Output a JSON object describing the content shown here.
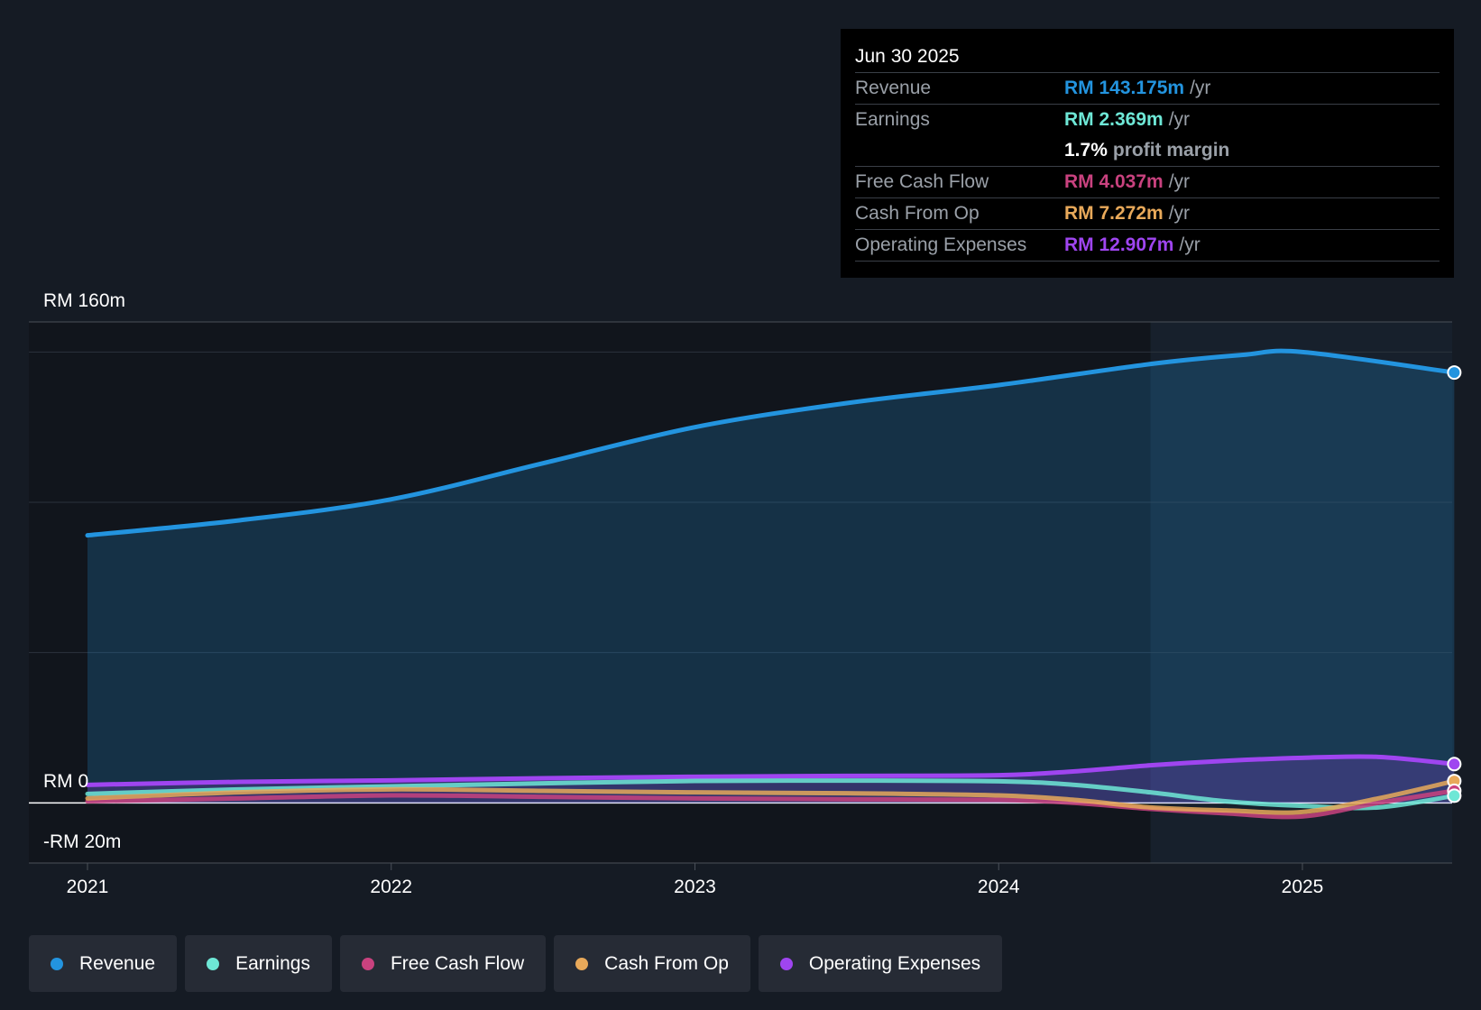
{
  "chart_data": {
    "type": "area",
    "x_unit": "year",
    "x_ticks": [
      "2021",
      "2022",
      "2023",
      "2024",
      "2025"
    ],
    "y_labels": {
      "top": "RM 160m",
      "zero": "RM 0",
      "bottom": "-RM 20m"
    },
    "ylim": [
      -20,
      160
    ],
    "unit": "RM m",
    "series": [
      {
        "name": "Revenue",
        "color": "#2394df",
        "fill": true,
        "points": [
          [
            2021.0,
            89
          ],
          [
            2021.5,
            94
          ],
          [
            2022.0,
            101
          ],
          [
            2022.5,
            113
          ],
          [
            2023.0,
            125
          ],
          [
            2023.5,
            133
          ],
          [
            2024.0,
            139
          ],
          [
            2024.5,
            146
          ],
          [
            2024.8,
            149
          ],
          [
            2025.0,
            150
          ],
          [
            2025.5,
            143.175
          ]
        ]
      },
      {
        "name": "Earnings",
        "color": "#6ee7d6",
        "fill": false,
        "points": [
          [
            2021.0,
            3
          ],
          [
            2021.5,
            4.5
          ],
          [
            2022.0,
            5.5
          ],
          [
            2022.5,
            6.5
          ],
          [
            2023.0,
            7.3
          ],
          [
            2023.5,
            7.4
          ],
          [
            2024.0,
            7.2
          ],
          [
            2024.25,
            6
          ],
          [
            2024.5,
            3.5
          ],
          [
            2024.75,
            0.5
          ],
          [
            2025.0,
            -1
          ],
          [
            2025.25,
            -1.5
          ],
          [
            2025.5,
            2.369
          ]
        ]
      },
      {
        "name": "Free Cash Flow",
        "color": "#c9427f",
        "fill": false,
        "points": [
          [
            2021.0,
            0.5
          ],
          [
            2021.5,
            1.5
          ],
          [
            2022.0,
            2.5
          ],
          [
            2022.5,
            2
          ],
          [
            2023.0,
            1.5
          ],
          [
            2023.5,
            1.2
          ],
          [
            2024.0,
            1
          ],
          [
            2024.25,
            0
          ],
          [
            2024.5,
            -2
          ],
          [
            2024.75,
            -3.5
          ],
          [
            2025.0,
            -4.5
          ],
          [
            2025.25,
            0
          ],
          [
            2025.5,
            4.037
          ]
        ]
      },
      {
        "name": "Cash From Op",
        "color": "#e8a95a",
        "fill": false,
        "points": [
          [
            2021.0,
            1.5
          ],
          [
            2021.5,
            3.5
          ],
          [
            2022.0,
            4.5
          ],
          [
            2022.5,
            4
          ],
          [
            2023.0,
            3.5
          ],
          [
            2023.5,
            3.2
          ],
          [
            2024.0,
            2.5
          ],
          [
            2024.25,
            1
          ],
          [
            2024.5,
            -1.5
          ],
          [
            2024.75,
            -2.5
          ],
          [
            2025.0,
            -3
          ],
          [
            2025.25,
            1.5
          ],
          [
            2025.5,
            7.272
          ]
        ]
      },
      {
        "name": "Operating Expenses",
        "color": "#9f45f0",
        "fill": true,
        "points": [
          [
            2021.0,
            6
          ],
          [
            2021.5,
            7
          ],
          [
            2022.0,
            7.5
          ],
          [
            2022.5,
            8.2
          ],
          [
            2023.0,
            8.7
          ],
          [
            2023.5,
            9
          ],
          [
            2024.0,
            9.2
          ],
          [
            2024.25,
            10.5
          ],
          [
            2024.5,
            12.5
          ],
          [
            2024.75,
            14
          ],
          [
            2025.0,
            15
          ],
          [
            2025.25,
            15.3
          ],
          [
            2025.5,
            12.907
          ]
        ]
      }
    ],
    "future_shading_from": 2024.5,
    "grid": true
  },
  "tooltip": {
    "date": "Jun 30 2025",
    "rows": [
      {
        "label": "Revenue",
        "value": "RM 143.175m",
        "unit": "/yr",
        "color": "#2394df"
      },
      {
        "label": "Earnings",
        "value": "RM 2.369m",
        "unit": "/yr",
        "color": "#6ee7d6"
      },
      {
        "label": "",
        "margin_value": "1.7%",
        "margin_text": "profit margin"
      },
      {
        "label": "Free Cash Flow",
        "value": "RM 4.037m",
        "unit": "/yr",
        "color": "#c9427f"
      },
      {
        "label": "Cash From Op",
        "value": "RM 7.272m",
        "unit": "/yr",
        "color": "#e8a95a"
      },
      {
        "label": "Operating Expenses",
        "value": "RM 12.907m",
        "unit": "/yr",
        "color": "#9f45f0"
      }
    ]
  },
  "legend": [
    {
      "label": "Revenue",
      "color": "#2394df"
    },
    {
      "label": "Earnings",
      "color": "#6ee7d6"
    },
    {
      "label": "Free Cash Flow",
      "color": "#c9427f"
    },
    {
      "label": "Cash From Op",
      "color": "#e8a95a"
    },
    {
      "label": "Operating Expenses",
      "color": "#9f45f0"
    }
  ]
}
